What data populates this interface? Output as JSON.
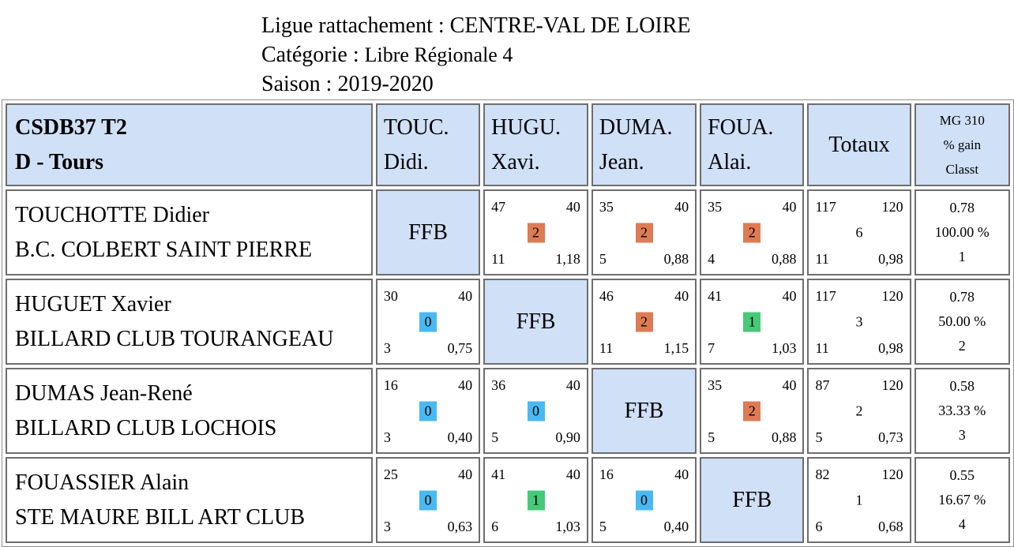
{
  "header": {
    "ligue": "Ligue rattachement : CENTRE-VAL DE LOIRE",
    "categorie_label": "Catégorie : ",
    "categorie_value": "Libre Régionale 4",
    "saison": "Saison : 2019-2020"
  },
  "table": {
    "team_line1": "CSDB37 T2",
    "team_line2": "D - Tours",
    "cols": [
      {
        "l1": "TOUC.",
        "l2": "Didi."
      },
      {
        "l1": "HUGU.",
        "l2": "Xavi."
      },
      {
        "l1": "DUMA.",
        "l2": "Jean."
      },
      {
        "l1": "FOUA.",
        "l2": "Alai."
      }
    ],
    "totaux": "Totaux",
    "mg_labels": [
      "MG 310",
      "% gain",
      "Classt"
    ],
    "ffb": "FFB",
    "rows": [
      {
        "name": "TOUCHOTTE Didier",
        "club": "B.C. COLBERT SAINT PIERRE",
        "matches": [
          null,
          {
            "pts": "47",
            "dist": "40",
            "res": "2",
            "rep": "11",
            "moy": "1,18"
          },
          {
            "pts": "35",
            "dist": "40",
            "res": "2",
            "rep": "5",
            "moy": "0,88"
          },
          {
            "pts": "35",
            "dist": "40",
            "res": "2",
            "rep": "4",
            "moy": "0,88"
          }
        ],
        "tot": {
          "pts": "117",
          "dist": "120",
          "res": "6",
          "rep": "11",
          "moy": "0,98"
        },
        "stats": [
          "0.78",
          "100.00 %",
          "1"
        ]
      },
      {
        "name": "HUGUET Xavier",
        "club": "BILLARD CLUB TOURANGEAU",
        "matches": [
          {
            "pts": "30",
            "dist": "40",
            "res": "0",
            "rep": "3",
            "moy": "0,75"
          },
          null,
          {
            "pts": "46",
            "dist": "40",
            "res": "2",
            "rep": "11",
            "moy": "1,15"
          },
          {
            "pts": "41",
            "dist": "40",
            "res": "1",
            "rep": "7",
            "moy": "1,03"
          }
        ],
        "tot": {
          "pts": "117",
          "dist": "120",
          "res": "3",
          "rep": "11",
          "moy": "0,98"
        },
        "stats": [
          "0.78",
          "50.00 %",
          "2"
        ]
      },
      {
        "name": "DUMAS Jean-René",
        "club": "BILLARD CLUB LOCHOIS",
        "matches": [
          {
            "pts": "16",
            "dist": "40",
            "res": "0",
            "rep": "3",
            "moy": "0,40"
          },
          {
            "pts": "36",
            "dist": "40",
            "res": "0",
            "rep": "5",
            "moy": "0,90"
          },
          null,
          {
            "pts": "35",
            "dist": "40",
            "res": "2",
            "rep": "5",
            "moy": "0,88"
          }
        ],
        "tot": {
          "pts": "87",
          "dist": "120",
          "res": "2",
          "rep": "5",
          "moy": "0,73"
        },
        "stats": [
          "0.58",
          "33.33 %",
          "3"
        ]
      },
      {
        "name": "FOUASSIER Alain",
        "club": "STE MAURE BILL ART CLUB",
        "matches": [
          {
            "pts": "25",
            "dist": "40",
            "res": "0",
            "rep": "3",
            "moy": "0,63"
          },
          {
            "pts": "41",
            "dist": "40",
            "res": "1",
            "rep": "6",
            "moy": "1,03"
          },
          {
            "pts": "16",
            "dist": "40",
            "res": "0",
            "rep": "5",
            "moy": "0,40"
          },
          null
        ],
        "tot": {
          "pts": "82",
          "dist": "120",
          "res": "1",
          "rep": "6",
          "moy": "0,68"
        },
        "stats": [
          "0.55",
          "16.67 %",
          "4"
        ]
      }
    ]
  }
}
